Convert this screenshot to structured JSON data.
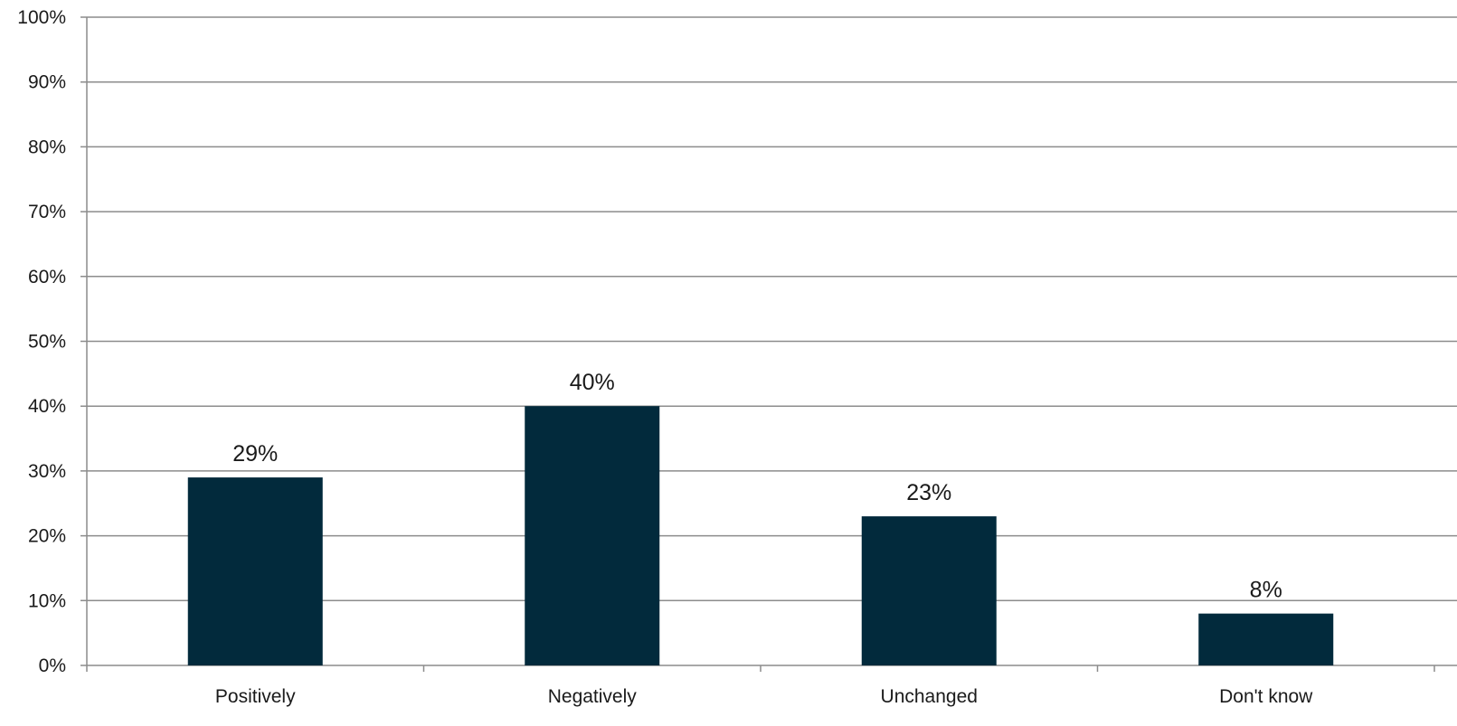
{
  "chart_data": {
    "type": "bar",
    "categories": [
      "Positively",
      "Negatively",
      "Unchanged",
      "Don't know"
    ],
    "values": [
      29,
      40,
      23,
      8
    ],
    "data_labels": [
      "29%",
      "40%",
      "23%",
      "8%"
    ],
    "ylim": [
      0,
      100
    ],
    "yticks": [
      0,
      10,
      20,
      30,
      40,
      50,
      60,
      70,
      80,
      90,
      100
    ],
    "ytick_labels": [
      "0%",
      "10%",
      "20%",
      "30%",
      "40%",
      "50%",
      "60%",
      "70%",
      "80%",
      "90%",
      "100%"
    ],
    "grid": true,
    "legend": "none",
    "bar_color": "#022a3c"
  }
}
